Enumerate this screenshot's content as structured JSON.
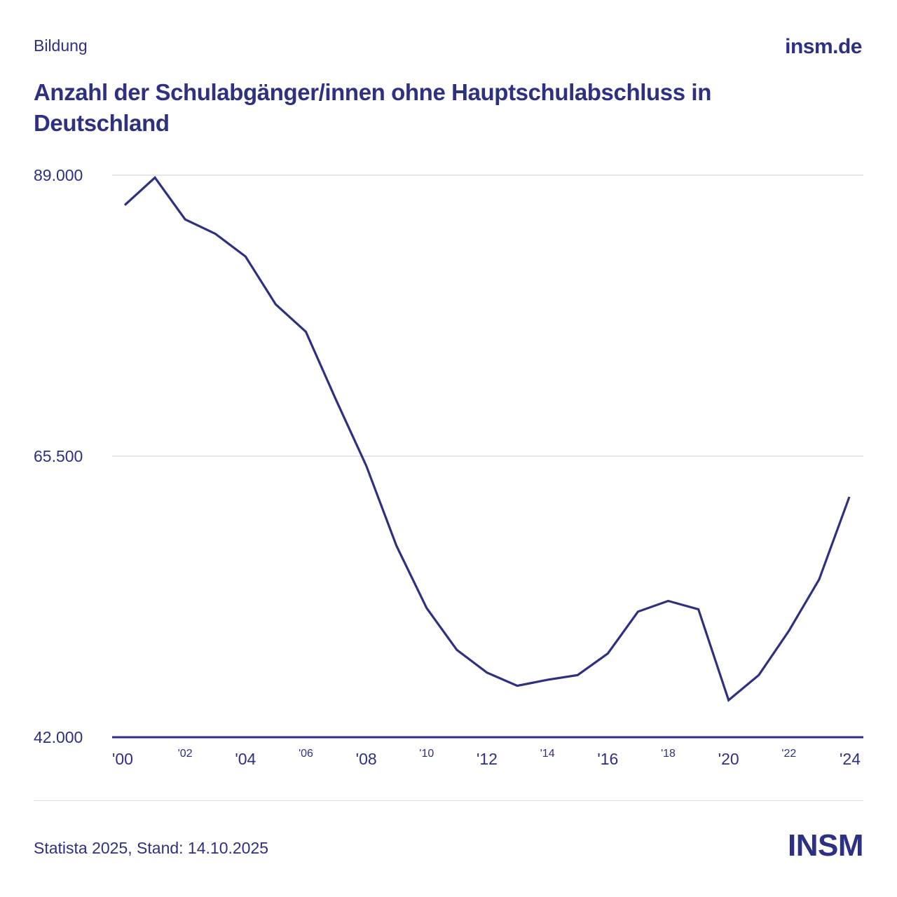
{
  "header": {
    "category": "Bildung",
    "site": "insm.de",
    "title": "Anzahl der Schulabgänger/innen ohne Hauptschulabschluss in Deutschland"
  },
  "footer": {
    "source": "Statista 2025, Stand: 14.10.2025",
    "logo": "INSM"
  },
  "colors": {
    "primary": "#2e3082",
    "grid": "#d6d6de"
  },
  "chart_data": {
    "type": "line",
    "title": "Anzahl der Schulabgänger/innen ohne Hauptschulabschluss in Deutschland",
    "xlabel": "",
    "ylabel": "",
    "ylim": [
      42000,
      89000
    ],
    "yticks": [
      42000,
      65500,
      89000
    ],
    "ytick_labels": [
      "42.000",
      "65.500",
      "89.000"
    ],
    "xlim": [
      2000,
      2024
    ],
    "xticks": [
      {
        "year": 2000,
        "label": "'00",
        "major": true
      },
      {
        "year": 2002,
        "label": "'02",
        "major": false
      },
      {
        "year": 2004,
        "label": "'04",
        "major": true
      },
      {
        "year": 2006,
        "label": "'06",
        "major": false
      },
      {
        "year": 2008,
        "label": "'08",
        "major": true
      },
      {
        "year": 2010,
        "label": "'10",
        "major": false
      },
      {
        "year": 2012,
        "label": "'12",
        "major": true
      },
      {
        "year": 2014,
        "label": "'14",
        "major": false
      },
      {
        "year": 2016,
        "label": "'16",
        "major": true
      },
      {
        "year": 2018,
        "label": "'18",
        "major": false
      },
      {
        "year": 2020,
        "label": "'20",
        "major": true
      },
      {
        "year": 2022,
        "label": "'22",
        "major": false
      },
      {
        "year": 2024,
        "label": "'24",
        "major": true
      }
    ],
    "grid": true,
    "series": [
      {
        "x": [
          2000,
          2001,
          2002,
          2003,
          2004,
          2005,
          2006,
          2007,
          2008,
          2009,
          2010,
          2011,
          2012,
          2013,
          2014,
          2015,
          2016,
          2017,
          2018,
          2019,
          2020,
          2021,
          2022,
          2023,
          2024
        ],
        "values": [
          86500,
          88800,
          85300,
          84100,
          82200,
          78200,
          75900,
          70200,
          64700,
          58000,
          52800,
          49300,
          47400,
          46300,
          46800,
          47200,
          49000,
          52500,
          53400,
          52700,
          45100,
          47200,
          50900,
          55200,
          62100
        ]
      }
    ]
  }
}
